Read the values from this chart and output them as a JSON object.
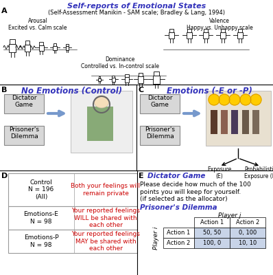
{
  "title_line1": "Self-reports of Emotional States",
  "title_line2": "(Self-Assessment Manikin - SAM scale; Bradley & Lang, 1994)",
  "section_a": "A",
  "section_b": "B",
  "section_c": "C",
  "section_d": "D",
  "section_e": "E",
  "panel_b_title": "No Emotions (Control)",
  "panel_c_title": "Emotions (-E or -P)",
  "arousal_label": "Arousal\nExcited vs. Calm scale",
  "valence_label": "Valence\nHappy vs. Unhappy scale",
  "dominance_label": "Dominance\nControlled vs. In-control scale",
  "game1": "Dictator\nGame",
  "game2": "Prisoner's\nDilemma",
  "exposure_label": "Exposure\n(E)",
  "prob_exposure_label": "Probabilistic\nExposure (P)",
  "control_label": "Control\nN = 196\n(All)",
  "emotions_e_label": "Emotions-E\nN = 98",
  "emotions_p_label": "Emotions-P\nN = 98",
  "control_text": "Both your feelings will\nremain private",
  "emotions_e_text": "Your reported feelings\nWILL be shared with\neach other",
  "emotions_p_text": "Your reported feelings\nMAY be shared with\neach other",
  "dictator_game_title": "Dictator Game",
  "dictator_game_text1": "Please decide how much of the 100",
  "dictator_game_text2": "points you will keep for yourself.",
  "dictator_game_text3": "(if selected as the allocator)",
  "prisoners_dilemma_title": "Prisoner's Dilemma",
  "player_j_label": "Player j",
  "player_i_label": "Player i",
  "action1": "Action 1",
  "action2": "Action 2",
  "table_rows": [
    [
      "Action 1",
      "50, 50",
      "0, 100"
    ],
    [
      "Action 2",
      "100, 0",
      "10, 10"
    ]
  ],
  "title_color": "#3333bb",
  "panel_bc_title_color": "#3333bb",
  "red_color": "#cc0000",
  "table_bg_color": "#c8d4e8",
  "background_color": "#ffffff",
  "border_color": "#888888",
  "box_fill": "#d8d8d8",
  "arrow_color": "#7799cc",
  "sep_line_color": "#000000"
}
